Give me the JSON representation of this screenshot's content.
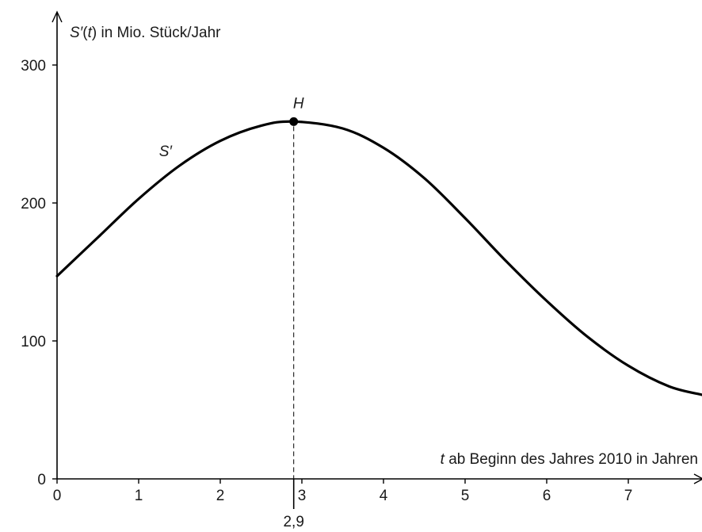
{
  "chart_data": {
    "type": "line",
    "ylabel": {
      "fn": "S′",
      "arg": "t",
      "rest": " in Mio. Stück/Jahr"
    },
    "xlabel": {
      "var": "t",
      "rest": " ab Beginn des Jahres 2010 in Jahren"
    },
    "xlim": [
      0,
      7.9
    ],
    "ylim": [
      0,
      300
    ],
    "xticks": [
      "0",
      "1",
      "2",
      "3",
      "4",
      "5",
      "6",
      "7"
    ],
    "yticks": [
      "0",
      "100",
      "200",
      "300"
    ],
    "series": [
      {
        "name": "S′",
        "x": [
          0,
          0.5,
          1,
          1.5,
          2,
          2.5,
          2.9,
          3.5,
          4,
          4.5,
          5,
          5.5,
          6,
          6.5,
          7,
          7.5,
          7.9
        ],
        "y": [
          147,
          175,
          203,
          227,
          245,
          256,
          259,
          254,
          240,
          218,
          189,
          158,
          129,
          103,
          82,
          67,
          61
        ]
      }
    ],
    "annotations": {
      "point_label": "H",
      "point": {
        "x": 2.9,
        "y": 259
      },
      "marker_label": "2,9",
      "curve_label": "S′"
    },
    "grid": false
  }
}
